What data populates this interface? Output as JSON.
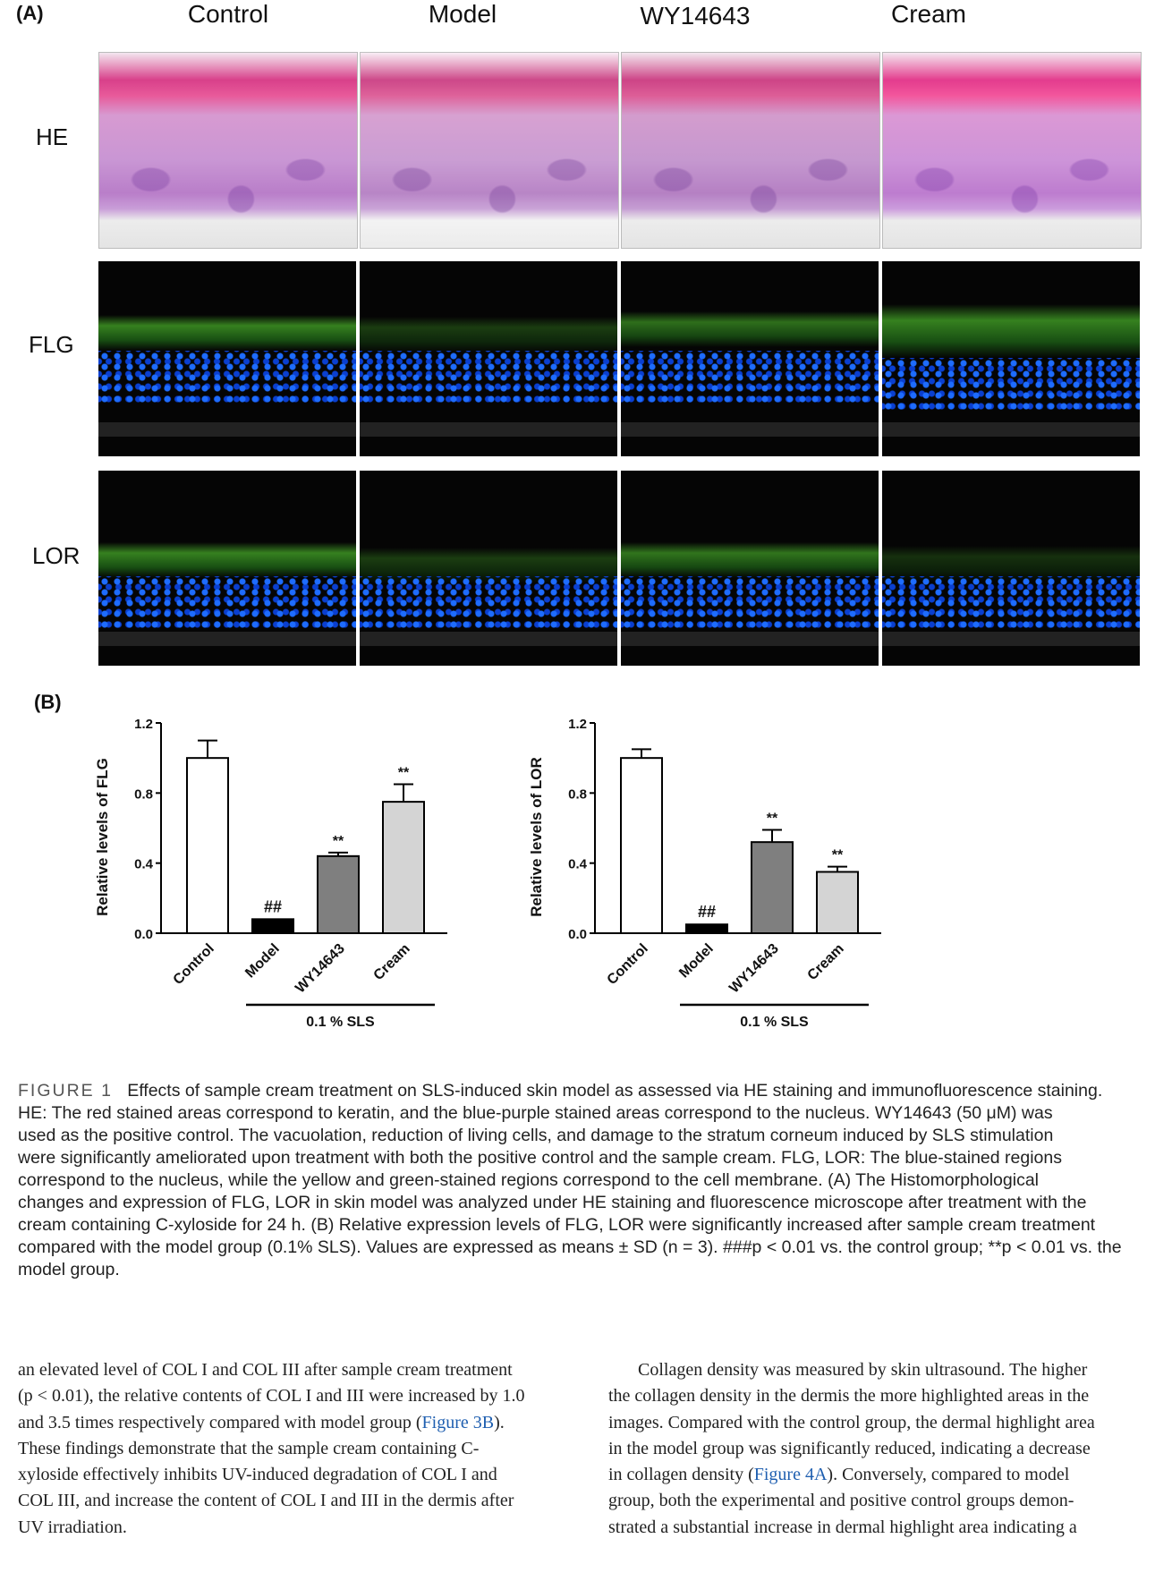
{
  "panel_a_label": "(A)",
  "panel_b_label": "(B)",
  "columns": [
    "Control",
    "Model",
    "WY14643",
    "Cream"
  ],
  "rows": [
    "HE",
    "FLG",
    "LOR"
  ],
  "chart_data": [
    {
      "type": "bar",
      "ylabel": "Relative levels of FLG",
      "categories": [
        "Control",
        "Model",
        "WY14643",
        "Cream"
      ],
      "values": [
        1.0,
        0.08,
        0.44,
        0.75
      ],
      "errors": [
        0.1,
        0,
        0.02,
        0.1
      ],
      "bar_colors": [
        "#ffffff",
        "#000000",
        "#7f7f7f",
        "#d4d4d4"
      ],
      "significance": [
        "",
        "##",
        "**",
        "**"
      ],
      "ylim": [
        0,
        1.2
      ],
      "yticks": [
        "0.0",
        "0.4",
        "0.8",
        "1.2"
      ],
      "group_bracket": "0.1 % SLS"
    },
    {
      "type": "bar",
      "ylabel": "Relative levels of LOR",
      "categories": [
        "Control",
        "Model",
        "WY14643",
        "Cream"
      ],
      "values": [
        1.0,
        0.05,
        0.52,
        0.35
      ],
      "errors": [
        0.05,
        0,
        0.07,
        0.03
      ],
      "bar_colors": [
        "#ffffff",
        "#000000",
        "#7f7f7f",
        "#d4d4d4"
      ],
      "significance": [
        "",
        "##",
        "**",
        "**"
      ],
      "ylim": [
        0,
        1.2
      ],
      "yticks": [
        "0.0",
        "0.4",
        "0.8",
        "1.2"
      ],
      "group_bracket": "0.1 % SLS"
    }
  ],
  "caption": {
    "label": "FIGURE 1",
    "lines": [
      "Effects of sample cream treatment on SLS-induced skin model as assessed via HE staining and immunofluorescence staining.",
      "HE: The red stained areas correspond to keratin, and the blue-purple stained areas correspond to the nucleus. WY14643 (50 μM) was",
      "used as the positive control. The vacuolation, reduction of living cells, and damage to the stratum corneum induced by SLS stimulation",
      "were significantly ameliorated upon treatment with both the positive control and the sample cream. FLG, LOR: The blue-stained regions",
      "correspond to the nucleus, while the yellow and green-stained regions correspond to the cell membrane. (A) The Histomorphological",
      "changes and expression of FLG, LOR in skin model was analyzed under HE staining and fluorescence microscope after treatment with the",
      "cream containing C-xyloside for 24 h. (B) Relative expression levels of FLG, LOR were significantly increased after sample cream treatment",
      "compared with the model group (0.1% SLS). Values are expressed as means ± SD (n = 3). ###p < 0.01 vs. the control group; **p < 0.01 vs. the",
      "model group."
    ]
  },
  "body_left": [
    "an elevated level of COL I and COL III after sample cream treatment",
    "(p < 0.01), the relative contents of COL I and III were increased by 1.0",
    "and 3.5 times respectively compared with model group (",
    "Figure 3B",
    ").",
    "These findings demonstrate that the sample cream containing C-",
    "xyloside effectively inhibits UV-induced degradation of COL I and",
    "COL III, and increase the content of COL I and III in the dermis after",
    "UV irradiation."
  ],
  "body_right": [
    "Collagen density was measured by skin ultrasound. The higher",
    "the collagen density in the dermis the more highlighted areas in the",
    "images. Compared with the control group, the dermal highlight area",
    "in the model group was significantly reduced, indicating a decrease",
    "in collagen density (",
    "Figure 4A",
    "). Conversely, compared to model",
    "group, both the experimental and positive control groups demon-",
    "strated a substantial increase in dermal highlight area indicating a"
  ]
}
